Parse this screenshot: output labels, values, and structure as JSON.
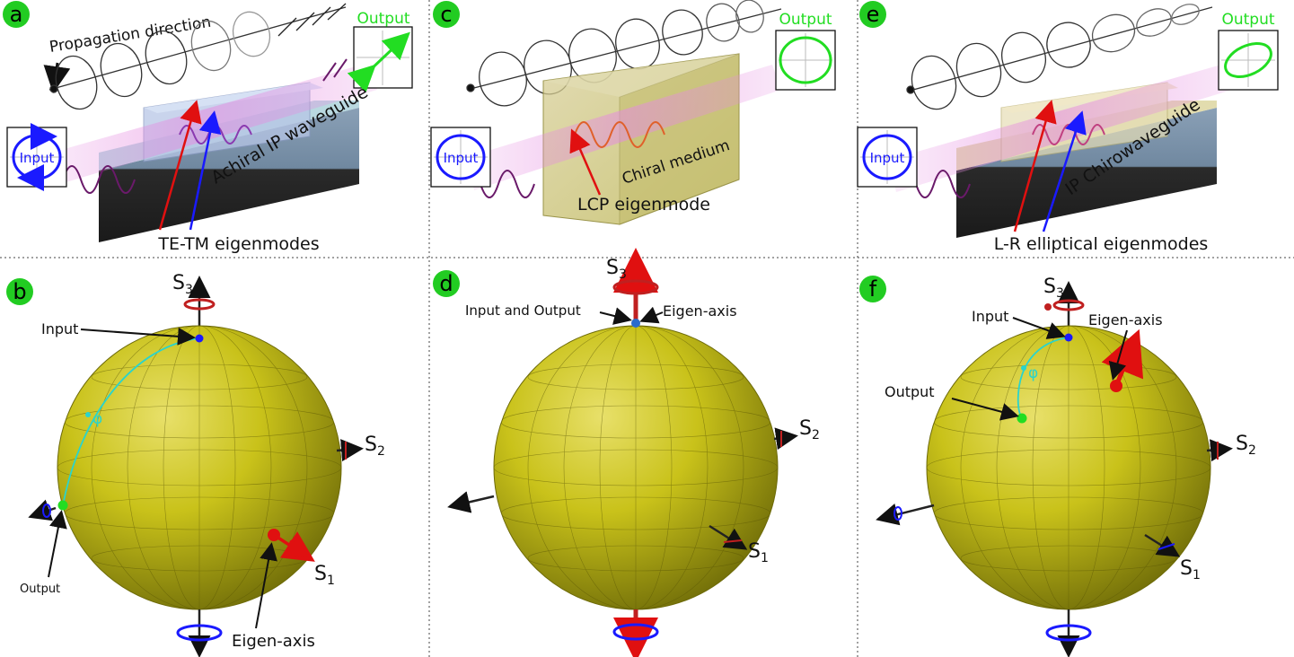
{
  "panels": {
    "a": {
      "letter": "a",
      "propagation_label": "Propagation direction",
      "output_label": "Output",
      "input_label": "Input",
      "waveguide_label": "Achiral IP waveguide",
      "eigenmode_label": "TE-TM eigenmodes"
    },
    "b": {
      "letter": "b",
      "s3": "S",
      "s3_sub": "3",
      "s2": "S",
      "s2_sub": "2",
      "s1": "S",
      "s1_sub": "1",
      "input_label": "Input",
      "output_label": "Output",
      "phi_label": "φ",
      "eigen_label": "Eigen-axis"
    },
    "c": {
      "letter": "c",
      "output_label": "Output",
      "input_label": "Input",
      "medium_label": "Chiral medium",
      "eigenmode_label": "LCP eigenmode"
    },
    "d": {
      "letter": "d",
      "s3": "S",
      "s3_sub": "3",
      "s2": "S",
      "s2_sub": "2",
      "s1": "S",
      "s1_sub": "1",
      "io_label": "Input and Output",
      "eigen_label": "Eigen-axis"
    },
    "e": {
      "letter": "e",
      "output_label": "Output",
      "input_label": "Input",
      "waveguide_label": "IP Chirowaveguide",
      "eigenmode_label": "L-R elliptical eigenmodes"
    },
    "f": {
      "letter": "f",
      "s3": "S",
      "s3_sub": "3",
      "s2": "S",
      "s2_sub": "2",
      "s1": "S",
      "s1_sub": "1",
      "input_label": "Input",
      "output_label": "Output",
      "phi_label": "φ",
      "eigen_label": "Eigen-axis"
    }
  },
  "colors": {
    "badge": "#22cc22",
    "sphere": "#c9c21a",
    "sphere_dark": "#6d6a08",
    "input_blue": "#1a1aff",
    "output_green": "#22dd22",
    "eigen_red": "#e01010",
    "beam": "#e58be0",
    "block_dark": "#2b2b2b",
    "block_blue": "#6f8fa8",
    "cyan": "#2ad4cc"
  }
}
